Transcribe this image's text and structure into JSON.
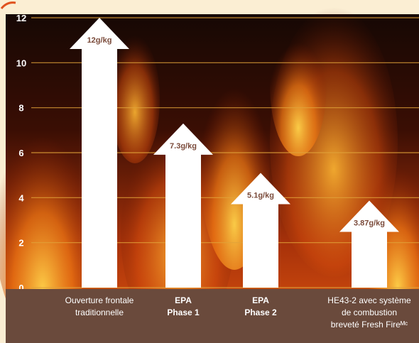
{
  "chart_data": {
    "type": "bar",
    "shape": "arrow",
    "categories": [
      [
        "Ouverture frontale",
        "traditionnelle"
      ],
      [
        "EPA",
        "Phase 1"
      ],
      [
        "EPA",
        "Phase 2"
      ],
      [
        "HE43-2 avec système",
        "de combustion",
        "breveté Fresh Fireᴹᶜ"
      ]
    ],
    "values": [
      12,
      7.3,
      5.1,
      3.87
    ],
    "value_labels": [
      "12g/kg",
      "7.3g/kg",
      "5.1g/kg",
      "3.87g/kg"
    ],
    "yticks": [
      0,
      2,
      4,
      6,
      8,
      10,
      12
    ],
    "ylim": [
      0,
      12
    ],
    "grid": true,
    "colors": {
      "page": "#fbeed3",
      "gridline": "#e0a23a",
      "bar": "#ffffff",
      "value_text": "#7a4a3a",
      "label_band": "#6a4a3c"
    }
  }
}
